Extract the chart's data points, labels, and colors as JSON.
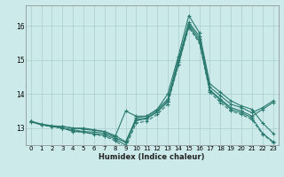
{
  "xlabel": "Humidex (Indice chaleur)",
  "bg_color": "#cceaea",
  "grid_color": "#aacccc",
  "line_color": "#2a7a70",
  "xlim": [
    -0.5,
    23.5
  ],
  "ylim": [
    12.5,
    16.6
  ],
  "yticks": [
    13,
    14,
    15,
    16
  ],
  "xticks": [
    0,
    1,
    2,
    3,
    4,
    5,
    6,
    7,
    8,
    9,
    10,
    11,
    12,
    13,
    14,
    15,
    16,
    17,
    18,
    19,
    20,
    21,
    22,
    23
  ],
  "lines": [
    {
      "y": [
        13.2,
        13.1,
        13.05,
        13.05,
        13.0,
        13.0,
        12.95,
        12.9,
        12.75,
        13.5,
        13.35,
        13.35,
        13.55,
        14.0,
        15.1,
        16.3,
        15.8,
        14.3,
        14.05,
        13.8,
        13.65,
        13.55,
        13.15,
        12.85
      ],
      "dashed": false
    },
    {
      "y": [
        13.2,
        13.1,
        13.05,
        13.0,
        12.95,
        12.9,
        12.88,
        12.85,
        12.72,
        12.58,
        13.3,
        13.35,
        13.55,
        13.85,
        15.0,
        16.1,
        15.7,
        14.2,
        13.95,
        13.7,
        13.6,
        13.45,
        13.6,
        13.8
      ],
      "dashed": false
    },
    {
      "y": [
        13.18,
        13.1,
        13.05,
        13.0,
        12.9,
        12.88,
        12.83,
        12.8,
        12.68,
        12.5,
        13.25,
        13.3,
        13.5,
        13.8,
        14.95,
        16.05,
        15.62,
        14.12,
        13.85,
        13.6,
        13.5,
        13.35,
        13.55,
        13.75
      ],
      "dashed": false
    },
    {
      "y": [
        13.2,
        13.12,
        13.07,
        13.05,
        13.0,
        12.97,
        12.93,
        12.9,
        12.78,
        12.6,
        13.22,
        13.27,
        13.47,
        13.77,
        14.85,
        16.0,
        15.55,
        14.1,
        13.82,
        13.55,
        13.45,
        13.3,
        12.85,
        12.6
      ],
      "dashed": false
    },
    {
      "y": [
        13.2,
        13.1,
        13.05,
        13.0,
        12.92,
        12.88,
        12.82,
        12.76,
        12.63,
        12.42,
        13.15,
        13.2,
        13.4,
        13.7,
        14.85,
        15.95,
        15.5,
        14.05,
        13.75,
        13.5,
        13.4,
        13.25,
        12.82,
        12.58
      ],
      "dashed": true
    }
  ]
}
